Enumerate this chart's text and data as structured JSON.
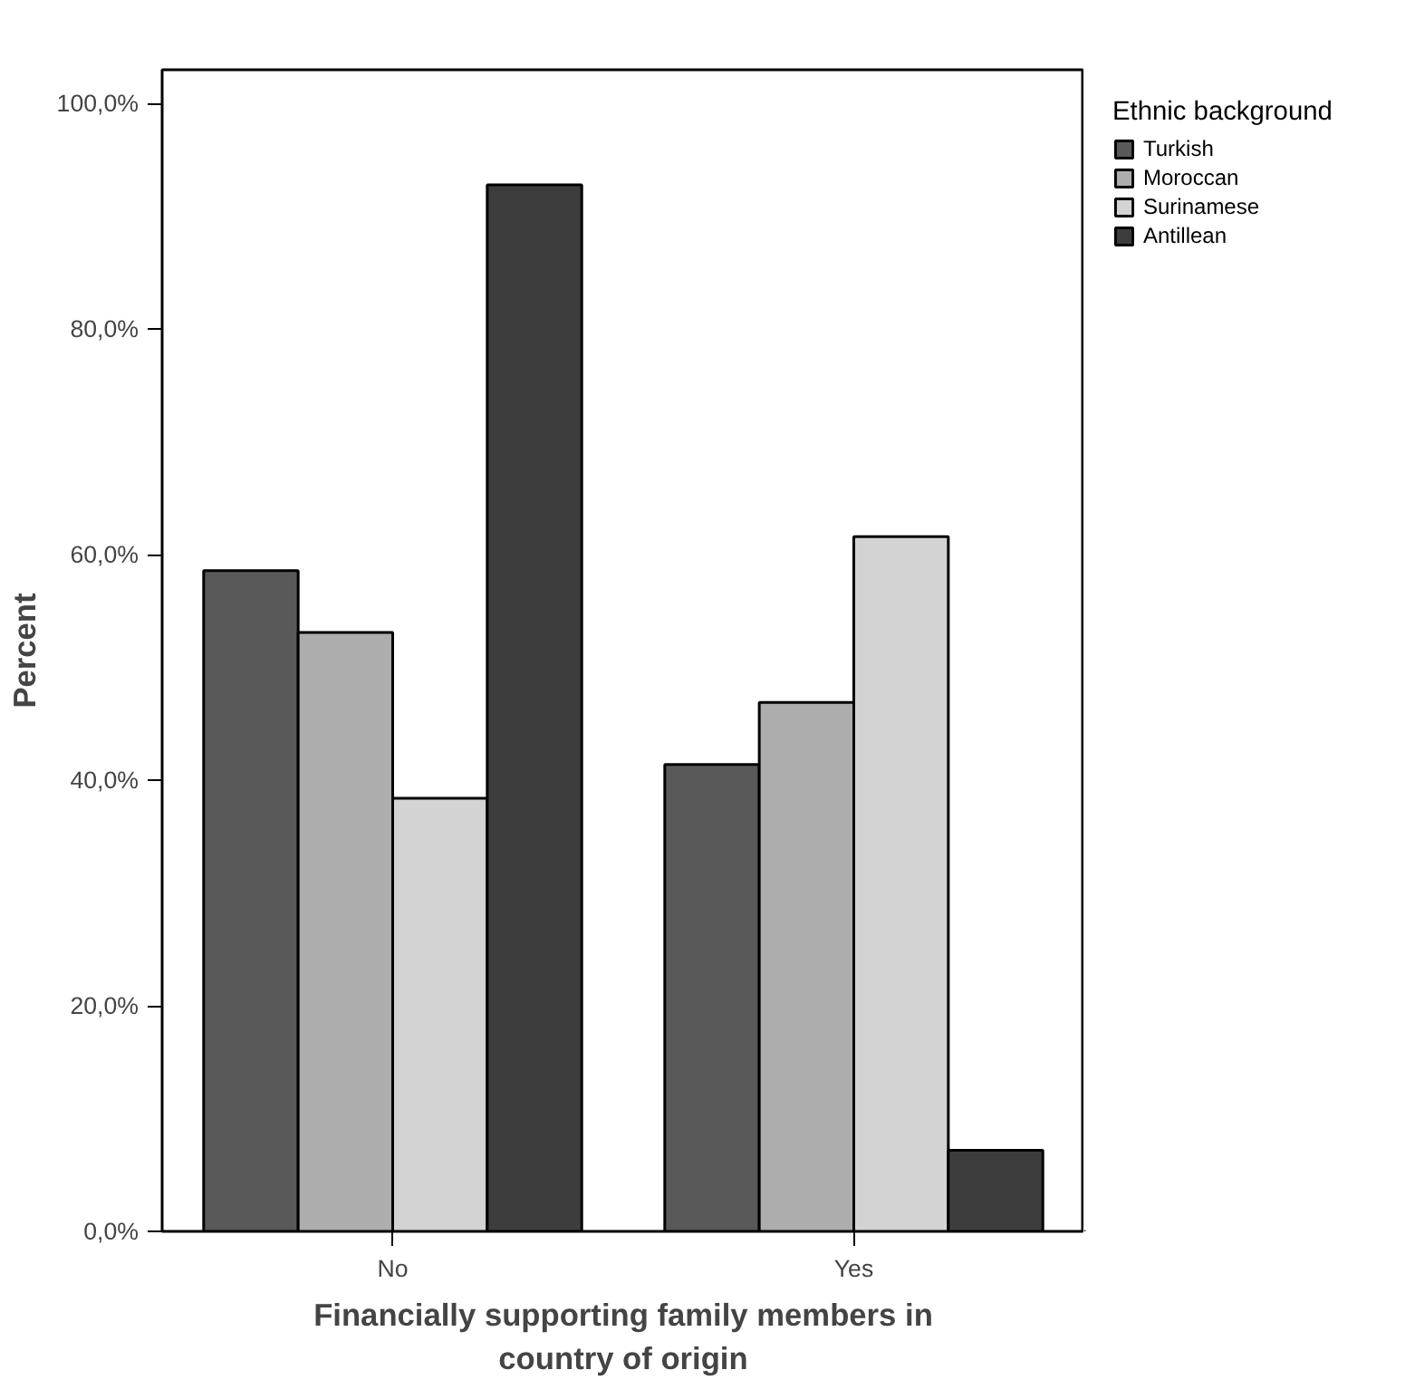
{
  "chart_data": {
    "type": "bar",
    "xlabel": "Financially supporting family members in country of origin",
    "ylabel": "Percent",
    "legend_title": "Ethnic background",
    "categories": [
      "No",
      "Yes"
    ],
    "series": [
      {
        "name": "Turkish",
        "color": "#595959",
        "values": [
          58.6,
          41.4
        ]
      },
      {
        "name": "Moroccan",
        "color": "#adadad",
        "values": [
          53.1,
          46.9
        ]
      },
      {
        "name": "Surinamese",
        "color": "#d3d3d3",
        "values": [
          38.4,
          61.6
        ]
      },
      {
        "name": "Antillean",
        "color": "#3d3d3d",
        "values": [
          92.8,
          7.2
        ]
      }
    ],
    "ylim": [
      0,
      103
    ],
    "yticks": [
      {
        "value": 0,
        "label": "0,0%"
      },
      {
        "value": 20,
        "label": "20,0%"
      },
      {
        "value": 40,
        "label": "40,0%"
      },
      {
        "value": 60,
        "label": "60,0%"
      },
      {
        "value": 80,
        "label": "80,0%"
      },
      {
        "value": 100,
        "label": "100,0%"
      }
    ],
    "grid": false,
    "legend": "top right"
  }
}
